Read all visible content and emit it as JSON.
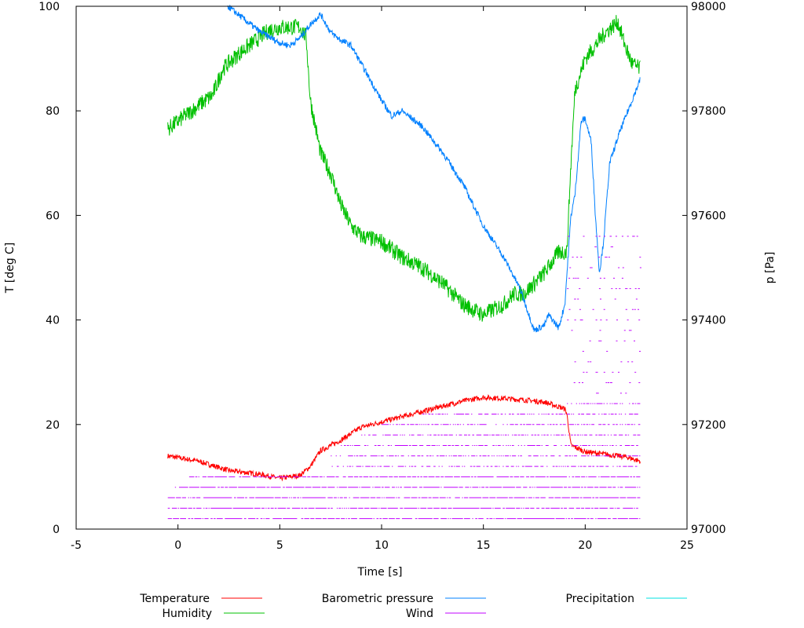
{
  "chart_data": {
    "type": "line",
    "title": "",
    "xlabel": "Time [s]",
    "ylabel": "T [deg C]",
    "y2label": "p [Pa]",
    "xlim": [
      -5,
      25
    ],
    "ylim": [
      0,
      100
    ],
    "y2lim": [
      97000,
      98000
    ],
    "xticks": [
      -5,
      0,
      5,
      10,
      15,
      20,
      25
    ],
    "yticks": [
      0,
      20,
      40,
      60,
      80,
      100
    ],
    "y2ticks": [
      97000,
      97200,
      97400,
      97600,
      97800,
      98000
    ],
    "grid": false,
    "legend_placement": "bottom",
    "series": [
      {
        "name": "Temperature",
        "axis": "left",
        "color": "#ff0000",
        "x": [
          -0.5,
          1,
          2.5,
          4,
          5,
          6,
          6.5,
          7,
          8,
          9,
          10,
          11,
          12,
          13,
          14,
          15,
          16,
          17,
          18,
          19,
          19.1,
          19.3,
          20,
          21,
          22,
          22.7
        ],
        "y": [
          14,
          13,
          11.2,
          10.5,
          9.7,
          10.3,
          12,
          15,
          17,
          19.5,
          20.5,
          21.5,
          22.5,
          23.5,
          24.5,
          25.2,
          25,
          24.7,
          24.3,
          23,
          22,
          16,
          14.8,
          14.3,
          13.8,
          13
        ]
      },
      {
        "name": "Humidity",
        "axis": "left",
        "color": "#00c000",
        "x": [
          -0.5,
          1,
          1.7,
          2.2,
          3,
          4,
          4.5,
          5,
          6,
          6.3,
          6.5,
          7,
          7.5,
          8,
          8.5,
          9,
          10,
          11,
          12,
          13,
          14,
          15,
          16,
          16.5,
          17,
          18,
          18.7,
          19.1,
          19.3,
          19.5,
          20,
          21,
          21.6,
          22,
          22.3,
          22.7
        ],
        "y": [
          76.5,
          81,
          83,
          88,
          91,
          94,
          95.5,
          96,
          96,
          94,
          82,
          72,
          68,
          62,
          58,
          56,
          55,
          52,
          50,
          47,
          43,
          41,
          43,
          45,
          45,
          49,
          53,
          53,
          70,
          84,
          90,
          95,
          97,
          92,
          89,
          88
        ]
      },
      {
        "name": "Barometric pressure",
        "axis": "right",
        "color": "#0080ff",
        "x": [
          2.45,
          4,
          5,
          5.5,
          6,
          6.5,
          7,
          7.5,
          8,
          8.5,
          9,
          10,
          10.5,
          11,
          12,
          13,
          14,
          15,
          16,
          16.8,
          17.5,
          18,
          18.2,
          18.7,
          19,
          19.3,
          19.5,
          19.8,
          20,
          20.3,
          20.5,
          20.7,
          20.9,
          21.2,
          21.7,
          22.3,
          22.7
        ],
        "y": [
          98000,
          97952,
          97930,
          97925,
          97940,
          97965,
          97985,
          97950,
          97935,
          97925,
          97890,
          97820,
          97790,
          97800,
          97770,
          97720,
          97660,
          97580,
          97520,
          97460,
          97380,
          97390,
          97410,
          97385,
          97430,
          97600,
          97640,
          97780,
          97785,
          97740,
          97600,
          97490,
          97550,
          97700,
          97760,
          97820,
          97860
        ]
      },
      {
        "name": "Wind",
        "axis": "left",
        "color": "#c000ff",
        "levels": [
          2,
          4,
          6,
          8,
          10,
          12,
          14,
          16,
          18,
          20,
          22,
          24
        ],
        "start": [
          -0.5,
          -0.5,
          -0.5,
          -0.2,
          0.5,
          7.5,
          7.5,
          8,
          9,
          10,
          12,
          19.1
        ],
        "end": 22.7
      },
      {
        "name": "Precipitation",
        "axis": "right",
        "color": "#00e0e0",
        "x": [],
        "y": []
      }
    ]
  }
}
